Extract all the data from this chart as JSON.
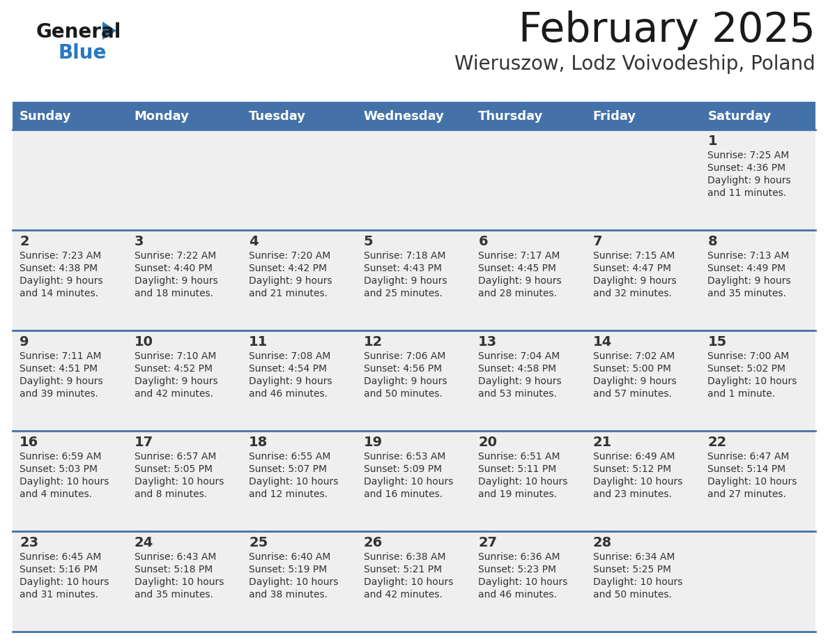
{
  "title": "February 2025",
  "subtitle": "Wieruszow, Lodz Voivodeship, Poland",
  "days_of_week": [
    "Sunday",
    "Monday",
    "Tuesday",
    "Wednesday",
    "Thursday",
    "Friday",
    "Saturday"
  ],
  "header_bg": "#4472a8",
  "header_text": "#ffffff",
  "cell_bg": "#efefef",
  "separator_color": "#4472a8",
  "text_color": "#333333",
  "title_color": "#1a1a1a",
  "subtitle_color": "#333333",
  "logo_general_color": "#1a1a1a",
  "logo_blue_color": "#2878c0",
  "calendar_data": [
    [
      {
        "day": null,
        "sunrise": null,
        "sunset": null,
        "daylight": null
      },
      {
        "day": null,
        "sunrise": null,
        "sunset": null,
        "daylight": null
      },
      {
        "day": null,
        "sunrise": null,
        "sunset": null,
        "daylight": null
      },
      {
        "day": null,
        "sunrise": null,
        "sunset": null,
        "daylight": null
      },
      {
        "day": null,
        "sunrise": null,
        "sunset": null,
        "daylight": null
      },
      {
        "day": null,
        "sunrise": null,
        "sunset": null,
        "daylight": null
      },
      {
        "day": 1,
        "sunrise": "7:25 AM",
        "sunset": "4:36 PM",
        "daylight": "9 hours\nand 11 minutes."
      }
    ],
    [
      {
        "day": 2,
        "sunrise": "7:23 AM",
        "sunset": "4:38 PM",
        "daylight": "9 hours\nand 14 minutes."
      },
      {
        "day": 3,
        "sunrise": "7:22 AM",
        "sunset": "4:40 PM",
        "daylight": "9 hours\nand 18 minutes."
      },
      {
        "day": 4,
        "sunrise": "7:20 AM",
        "sunset": "4:42 PM",
        "daylight": "9 hours\nand 21 minutes."
      },
      {
        "day": 5,
        "sunrise": "7:18 AM",
        "sunset": "4:43 PM",
        "daylight": "9 hours\nand 25 minutes."
      },
      {
        "day": 6,
        "sunrise": "7:17 AM",
        "sunset": "4:45 PM",
        "daylight": "9 hours\nand 28 minutes."
      },
      {
        "day": 7,
        "sunrise": "7:15 AM",
        "sunset": "4:47 PM",
        "daylight": "9 hours\nand 32 minutes."
      },
      {
        "day": 8,
        "sunrise": "7:13 AM",
        "sunset": "4:49 PM",
        "daylight": "9 hours\nand 35 minutes."
      }
    ],
    [
      {
        "day": 9,
        "sunrise": "7:11 AM",
        "sunset": "4:51 PM",
        "daylight": "9 hours\nand 39 minutes."
      },
      {
        "day": 10,
        "sunrise": "7:10 AM",
        "sunset": "4:52 PM",
        "daylight": "9 hours\nand 42 minutes."
      },
      {
        "day": 11,
        "sunrise": "7:08 AM",
        "sunset": "4:54 PM",
        "daylight": "9 hours\nand 46 minutes."
      },
      {
        "day": 12,
        "sunrise": "7:06 AM",
        "sunset": "4:56 PM",
        "daylight": "9 hours\nand 50 minutes."
      },
      {
        "day": 13,
        "sunrise": "7:04 AM",
        "sunset": "4:58 PM",
        "daylight": "9 hours\nand 53 minutes."
      },
      {
        "day": 14,
        "sunrise": "7:02 AM",
        "sunset": "5:00 PM",
        "daylight": "9 hours\nand 57 minutes."
      },
      {
        "day": 15,
        "sunrise": "7:00 AM",
        "sunset": "5:02 PM",
        "daylight": "10 hours\nand 1 minute."
      }
    ],
    [
      {
        "day": 16,
        "sunrise": "6:59 AM",
        "sunset": "5:03 PM",
        "daylight": "10 hours\nand 4 minutes."
      },
      {
        "day": 17,
        "sunrise": "6:57 AM",
        "sunset": "5:05 PM",
        "daylight": "10 hours\nand 8 minutes."
      },
      {
        "day": 18,
        "sunrise": "6:55 AM",
        "sunset": "5:07 PM",
        "daylight": "10 hours\nand 12 minutes."
      },
      {
        "day": 19,
        "sunrise": "6:53 AM",
        "sunset": "5:09 PM",
        "daylight": "10 hours\nand 16 minutes."
      },
      {
        "day": 20,
        "sunrise": "6:51 AM",
        "sunset": "5:11 PM",
        "daylight": "10 hours\nand 19 minutes."
      },
      {
        "day": 21,
        "sunrise": "6:49 AM",
        "sunset": "5:12 PM",
        "daylight": "10 hours\nand 23 minutes."
      },
      {
        "day": 22,
        "sunrise": "6:47 AM",
        "sunset": "5:14 PM",
        "daylight": "10 hours\nand 27 minutes."
      }
    ],
    [
      {
        "day": 23,
        "sunrise": "6:45 AM",
        "sunset": "5:16 PM",
        "daylight": "10 hours\nand 31 minutes."
      },
      {
        "day": 24,
        "sunrise": "6:43 AM",
        "sunset": "5:18 PM",
        "daylight": "10 hours\nand 35 minutes."
      },
      {
        "day": 25,
        "sunrise": "6:40 AM",
        "sunset": "5:19 PM",
        "daylight": "10 hours\nand 38 minutes."
      },
      {
        "day": 26,
        "sunrise": "6:38 AM",
        "sunset": "5:21 PM",
        "daylight": "10 hours\nand 42 minutes."
      },
      {
        "day": 27,
        "sunrise": "6:36 AM",
        "sunset": "5:23 PM",
        "daylight": "10 hours\nand 46 minutes."
      },
      {
        "day": 28,
        "sunrise": "6:34 AM",
        "sunset": "5:25 PM",
        "daylight": "10 hours\nand 50 minutes."
      },
      {
        "day": null,
        "sunrise": null,
        "sunset": null,
        "daylight": null
      }
    ]
  ]
}
